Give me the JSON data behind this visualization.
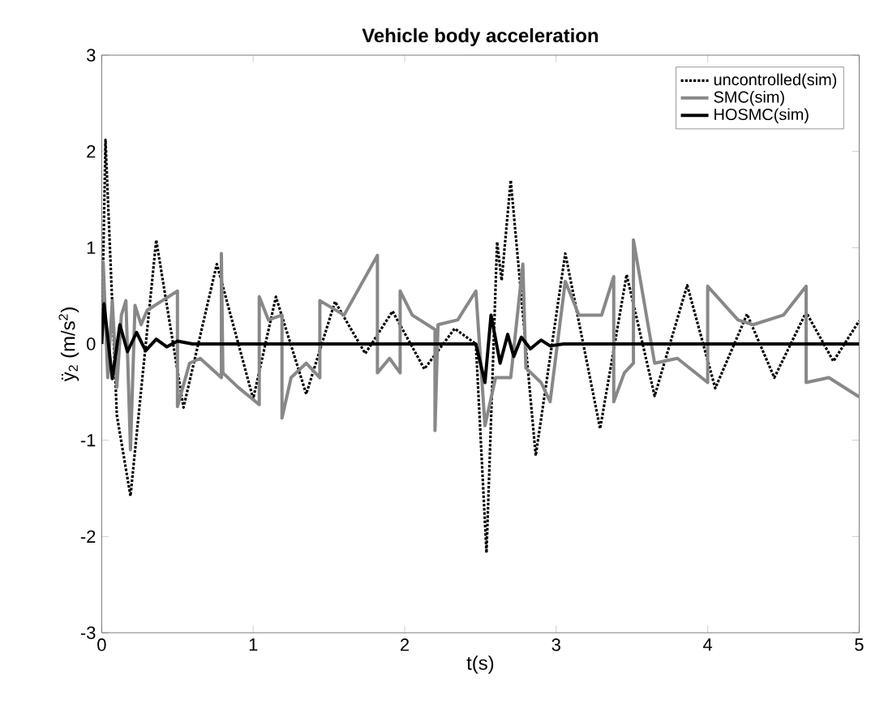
{
  "chart_data": {
    "type": "line",
    "title": "Vehicle body acceleration",
    "xlabel": "t(s)",
    "ylabel": "ÿ$_{2}$ (m/s$^{2}$)",
    "xlim": [
      0,
      5
    ],
    "ylim": [
      -3,
      3
    ],
    "xticks": [
      0,
      1,
      2,
      3,
      4,
      5
    ],
    "yticks": [
      -3,
      -2,
      -1,
      0,
      1,
      2,
      3
    ],
    "grid": false,
    "legend": "top right",
    "marker": "none",
    "series": [
      {
        "name": "uncontrolled(sim)",
        "color": "#000000",
        "line_style": "dotted",
        "x": [
          0,
          0.025,
          0.1,
          0.19,
          0.36,
          0.54,
          0.76,
          1.0,
          1.15,
          1.35,
          1.54,
          1.74,
          1.92,
          2.13,
          2.33,
          2.47,
          2.54,
          2.61,
          2.64,
          2.7,
          2.865,
          3.06,
          3.29,
          3.465,
          3.65,
          3.865,
          4.05,
          4.26,
          4.44,
          4.65,
          4.83,
          5.0
        ],
        "values": [
          0,
          2.12,
          -0.74,
          -1.58,
          1.08,
          -0.66,
          0.83,
          -0.57,
          0.49,
          -0.52,
          0.44,
          -0.1,
          0.34,
          -0.26,
          0.16,
          0,
          -2.17,
          1.06,
          0.66,
          1.7,
          -1.16,
          0.94,
          -0.88,
          0.72,
          -0.54,
          0.61,
          -0.46,
          0.31,
          -0.35,
          0.33,
          -0.18,
          0.24
        ]
      },
      {
        "name": "SMC(sim)",
        "color": "#888888",
        "line_style": "solid",
        "x": [
          0,
          0.01,
          0.04,
          0.07,
          0.1,
          0.13,
          0.16,
          0.19,
          0.22,
          0.26,
          0.3,
          0.4,
          0.5,
          0.5,
          0.58,
          0.65,
          0.72,
          0.79,
          0.79,
          0.8,
          0.9,
          1.04,
          1.04,
          1.1,
          1.19,
          1.19,
          1.25,
          1.35,
          1.44,
          1.44,
          1.6,
          1.82,
          1.82,
          1.9,
          1.97,
          1.97,
          2.05,
          2.2,
          2.2,
          2.22,
          2.35,
          2.47,
          2.53,
          2.6,
          2.7,
          2.78,
          2.8,
          2.9,
          2.96,
          3.06,
          3.15,
          3.3,
          3.38,
          3.38,
          3.45,
          3.51,
          3.51,
          3.65,
          3.8,
          4.0,
          4.0,
          4.2,
          4.3,
          4.5,
          4.65,
          4.65,
          4.8,
          5.0
        ],
        "values": [
          0,
          0.85,
          -0.35,
          0.45,
          -0.45,
          0.3,
          0.45,
          -1.1,
          0.4,
          0.2,
          0.35,
          0.45,
          0.55,
          -0.65,
          -0.2,
          -0.15,
          -0.25,
          -0.35,
          0.94,
          -0.3,
          -0.45,
          -0.63,
          0.49,
          0.25,
          0.3,
          -0.77,
          -0.35,
          -0.2,
          -0.35,
          0.45,
          0.3,
          0.92,
          -0.3,
          -0.15,
          -0.3,
          0.55,
          0.3,
          0.15,
          -0.9,
          0.2,
          0.25,
          0.55,
          -0.85,
          -0.35,
          -0.35,
          0.83,
          -0.25,
          -0.4,
          -0.6,
          0.65,
          0.3,
          0.3,
          0.7,
          -0.6,
          -0.3,
          -0.2,
          1.08,
          -0.2,
          -0.15,
          -0.4,
          0.6,
          0.25,
          0.2,
          0.3,
          0.6,
          -0.4,
          -0.35,
          -0.55
        ]
      },
      {
        "name": "HOSMC(sim)",
        "color": "#000000",
        "line_style": "solid",
        "x": [
          0,
          0.015,
          0.07,
          0.12,
          0.17,
          0.23,
          0.29,
          0.36,
          0.43,
          0.5,
          0.6,
          2.47,
          2.53,
          2.57,
          2.63,
          2.68,
          2.72,
          2.77,
          2.83,
          2.9,
          2.96,
          3.05,
          5.0
        ],
        "values": [
          0,
          0.42,
          -0.36,
          0.2,
          -0.08,
          0.12,
          -0.07,
          0.05,
          -0.03,
          0.03,
          0,
          0,
          -0.4,
          0.3,
          -0.2,
          0.1,
          -0.13,
          0.07,
          -0.05,
          0.04,
          -0.02,
          0,
          0
        ]
      }
    ]
  }
}
